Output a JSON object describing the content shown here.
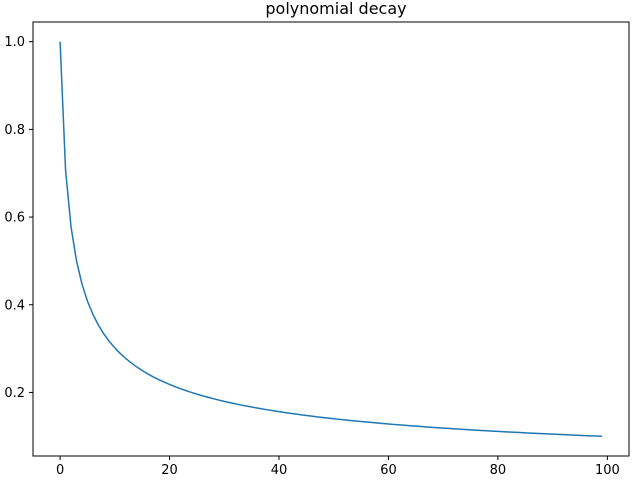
{
  "chart_data": {
    "type": "line",
    "title": "polynomial decay",
    "xlabel": "",
    "ylabel": "",
    "xlim": [
      -4.95,
      103.95
    ],
    "ylim": [
      0.055,
      1.045
    ],
    "xticks": [
      0,
      20,
      40,
      60,
      80,
      100
    ],
    "xtick_labels": [
      "0",
      "20",
      "40",
      "60",
      "80",
      "100"
    ],
    "yticks": [
      0.2,
      0.4,
      0.6,
      0.8,
      1.0
    ],
    "ytick_labels": [
      "0.2",
      "0.4",
      "0.6",
      "0.8",
      "1.0"
    ],
    "grid": false,
    "series": [
      {
        "color": "#1f77b4",
        "x": [
          0,
          1,
          2,
          3,
          4,
          5,
          6,
          7,
          8,
          9,
          10,
          11,
          12,
          13,
          14,
          15,
          16,
          17,
          18,
          19,
          20,
          21,
          22,
          23,
          24,
          25,
          26,
          27,
          28,
          29,
          30,
          31,
          32,
          33,
          34,
          35,
          36,
          37,
          38,
          39,
          40,
          41,
          42,
          43,
          44,
          45,
          46,
          47,
          48,
          49,
          50,
          51,
          52,
          53,
          54,
          55,
          56,
          57,
          58,
          59,
          60,
          61,
          62,
          63,
          64,
          65,
          66,
          67,
          68,
          69,
          70,
          71,
          72,
          73,
          74,
          75,
          76,
          77,
          78,
          79,
          80,
          81,
          82,
          83,
          84,
          85,
          86,
          87,
          88,
          89,
          90,
          91,
          92,
          93,
          94,
          95,
          96,
          97,
          98,
          99
        ],
        "y": [
          1.0,
          0.7071,
          0.5774,
          0.5,
          0.4472,
          0.4082,
          0.378,
          0.3536,
          0.3333,
          0.3162,
          0.3015,
          0.2887,
          0.2774,
          0.2673,
          0.2582,
          0.25,
          0.2425,
          0.2357,
          0.2294,
          0.2236,
          0.2182,
          0.2132,
          0.2085,
          0.2041,
          0.2,
          0.1961,
          0.1925,
          0.189,
          0.1857,
          0.1826,
          0.1796,
          0.1768,
          0.1741,
          0.1715,
          0.169,
          0.1667,
          0.1644,
          0.1622,
          0.1601,
          0.1581,
          0.1562,
          0.1543,
          0.1525,
          0.1508,
          0.1491,
          0.1474,
          0.1459,
          0.1443,
          0.1429,
          0.1414,
          0.14,
          0.1387,
          0.1374,
          0.1361,
          0.1348,
          0.1336,
          0.1325,
          0.1313,
          0.1302,
          0.1291,
          0.1281,
          0.127,
          0.126,
          0.125,
          0.124,
          0.1231,
          0.1222,
          0.1213,
          0.1204,
          0.1195,
          0.1187,
          0.1179,
          0.117,
          0.1162,
          0.1155,
          0.1147,
          0.114,
          0.1132,
          0.1125,
          0.1118,
          0.1111,
          0.1104,
          0.1098,
          0.1091,
          0.1085,
          0.1078,
          0.1072,
          0.1066,
          0.106,
          0.1054,
          0.1048,
          0.1043,
          0.1037,
          0.1031,
          0.1026,
          0.1021,
          0.1015,
          0.101,
          0.1005,
          0.1
        ]
      }
    ]
  }
}
